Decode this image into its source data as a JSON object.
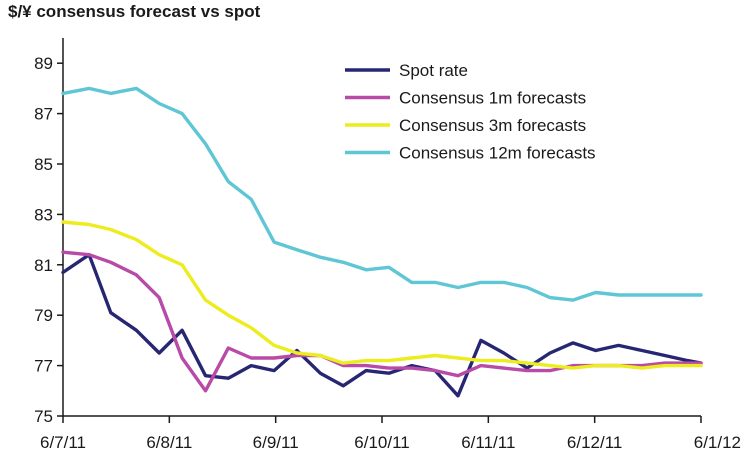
{
  "chart_data": {
    "type": "line",
    "title": "$/¥ consensus forecast vs spot",
    "xlabel": "",
    "ylabel": "",
    "ylim": [
      75,
      90
    ],
    "yticks": [
      75,
      77,
      79,
      81,
      83,
      85,
      87,
      89
    ],
    "xlim": [
      0,
      12
    ],
    "xticks": [
      {
        "x": 0,
        "label": "6/7/11"
      },
      {
        "x": 2,
        "label": "6/8/11"
      },
      {
        "x": 4,
        "label": "6/9/11"
      },
      {
        "x": 6,
        "label": "6/10/11"
      },
      {
        "x": 8,
        "label": "6/11/11"
      },
      {
        "x": 10,
        "label": "6/12/11"
      },
      {
        "x": 12,
        "label": "6/1/12"
      }
    ],
    "legend_position": "top-right",
    "grid": false,
    "series": [
      {
        "name": "Spot rate",
        "color": "#262673",
        "x": [
          0.0,
          0.49,
          0.9,
          1.38,
          1.81,
          2.24,
          2.68,
          3.11,
          3.54,
          3.97,
          4.4,
          4.84,
          5.27,
          5.7,
          6.13,
          6.56,
          7.0,
          7.43,
          7.86,
          8.29,
          8.73,
          9.16,
          9.59,
          10.02,
          10.45,
          10.89,
          11.32,
          11.75,
          12.0
        ],
        "y": [
          80.7,
          81.4,
          79.1,
          78.4,
          77.5,
          78.4,
          76.6,
          76.5,
          77.0,
          76.8,
          77.6,
          76.7,
          76.2,
          76.8,
          76.7,
          77.0,
          76.8,
          75.8,
          78.0,
          77.5,
          76.9,
          77.5,
          77.9,
          77.6,
          77.8,
          77.6,
          77.4,
          77.2,
          77.1
        ]
      },
      {
        "name": "Consensus 1m forecasts",
        "color": "#b84aa8",
        "x": [
          0.0,
          0.49,
          0.9,
          1.38,
          1.81,
          2.24,
          2.68,
          3.11,
          3.54,
          3.97,
          4.4,
          4.84,
          5.27,
          5.7,
          6.13,
          6.56,
          7.0,
          7.43,
          7.86,
          8.29,
          8.73,
          9.16,
          9.59,
          10.02,
          10.45,
          10.89,
          11.32,
          11.75,
          12.0
        ],
        "y": [
          81.5,
          81.4,
          81.1,
          80.6,
          79.7,
          77.3,
          76.0,
          77.7,
          77.3,
          77.3,
          77.4,
          77.4,
          77.0,
          77.0,
          76.9,
          76.9,
          76.8,
          76.6,
          77.0,
          76.9,
          76.8,
          76.8,
          77.0,
          77.0,
          77.0,
          77.0,
          77.1,
          77.1,
          77.1
        ]
      },
      {
        "name": "Consensus 3m forecasts",
        "color": "#ecec1e",
        "x": [
          0.0,
          0.49,
          0.9,
          1.38,
          1.81,
          2.24,
          2.68,
          3.11,
          3.54,
          3.97,
          4.4,
          4.84,
          5.27,
          5.7,
          6.13,
          6.56,
          7.0,
          7.43,
          7.86,
          8.29,
          8.73,
          9.16,
          9.59,
          10.02,
          10.45,
          10.89,
          11.32,
          11.75,
          12.0
        ],
        "y": [
          82.7,
          82.6,
          82.4,
          82.0,
          81.4,
          81.0,
          79.6,
          79.0,
          78.5,
          77.8,
          77.5,
          77.4,
          77.1,
          77.2,
          77.2,
          77.3,
          77.4,
          77.3,
          77.2,
          77.2,
          77.1,
          77.0,
          76.9,
          77.0,
          77.0,
          76.9,
          77.0,
          77.0,
          77.0
        ]
      },
      {
        "name": "Consensus 12m forecasts",
        "color": "#5ec6d5",
        "x": [
          0.0,
          0.49,
          0.9,
          1.38,
          1.81,
          2.24,
          2.68,
          3.11,
          3.54,
          3.97,
          4.4,
          4.84,
          5.27,
          5.7,
          6.13,
          6.56,
          7.0,
          7.43,
          7.86,
          8.29,
          8.73,
          9.16,
          9.59,
          10.02,
          10.45,
          10.89,
          11.32,
          11.75,
          12.0
        ],
        "y": [
          87.8,
          88.0,
          87.8,
          88.0,
          87.4,
          87.0,
          85.8,
          84.3,
          83.6,
          81.9,
          81.6,
          81.3,
          81.1,
          80.8,
          80.9,
          80.3,
          80.3,
          80.1,
          80.3,
          80.3,
          80.1,
          79.7,
          79.6,
          79.9,
          79.8,
          79.8,
          79.8,
          79.8,
          79.8
        ]
      }
    ]
  }
}
